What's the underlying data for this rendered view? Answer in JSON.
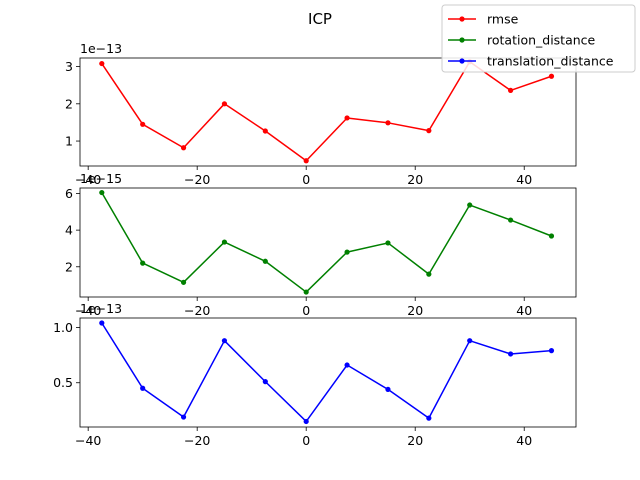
{
  "figure": {
    "title": "ICP"
  },
  "chart_data": [
    {
      "type": "line",
      "series": [
        {
          "name": "rmse",
          "color": "#ff0000",
          "x": [
            -37.5,
            -30,
            -22.5,
            -15,
            -7.5,
            0,
            7.5,
            15,
            22.5,
            30,
            37.5,
            45
          ],
          "y": [
            3.08,
            1.45,
            0.82,
            2.0,
            1.27,
            0.47,
            1.62,
            1.49,
            1.28,
            3.13,
            2.36,
            2.74
          ]
        }
      ],
      "exponent_label": "1e−13",
      "xlim": [
        -41.5,
        49.5
      ],
      "ylim": [
        0.33,
        3.23
      ],
      "xticks": [
        -40,
        -20,
        0,
        20,
        40
      ],
      "xtick_labels": [
        "−40",
        "−20",
        "0",
        "20",
        "40"
      ],
      "yticks": [
        1,
        2,
        3
      ],
      "ytick_labels": [
        "1",
        "2",
        "3"
      ]
    },
    {
      "type": "line",
      "series": [
        {
          "name": "rotation_distance",
          "color": "#008000",
          "x": [
            -37.5,
            -30,
            -22.5,
            -15,
            -7.5,
            0,
            7.5,
            15,
            22.5,
            30,
            37.5,
            45
          ],
          "y": [
            6.05,
            2.2,
            1.15,
            3.35,
            2.3,
            0.62,
            2.8,
            3.3,
            1.6,
            5.37,
            4.55,
            3.68
          ]
        }
      ],
      "exponent_label": "1e−15",
      "xlim": [
        -41.5,
        49.5
      ],
      "ylim": [
        0.35,
        6.3
      ],
      "xticks": [
        -40,
        -20,
        0,
        20,
        40
      ],
      "xtick_labels": [
        "−40",
        "−20",
        "0",
        "20",
        "40"
      ],
      "yticks": [
        2,
        4,
        6
      ],
      "ytick_labels": [
        "2",
        "4",
        "6"
      ]
    },
    {
      "type": "line",
      "series": [
        {
          "name": "translation_distance",
          "color": "#0000ff",
          "x": [
            -37.5,
            -30,
            -22.5,
            -15,
            -7.5,
            0,
            7.5,
            15,
            22.5,
            30,
            37.5,
            45
          ],
          "y": [
            1.04,
            0.45,
            0.19,
            0.88,
            0.51,
            0.15,
            0.66,
            0.44,
            0.18,
            0.88,
            0.76,
            0.79
          ]
        }
      ],
      "exponent_label": "1e−13",
      "xlim": [
        -41.5,
        49.5
      ],
      "ylim": [
        0.1,
        1.085
      ],
      "xticks": [
        -40,
        -20,
        0,
        20,
        40
      ],
      "xtick_labels": [
        "−40",
        "−20",
        "0",
        "20",
        "40"
      ],
      "yticks": [
        0.5,
        1.0
      ],
      "ytick_labels": [
        "0.5",
        "1.0"
      ]
    }
  ],
  "legend": {
    "placement": "upper-right",
    "entries": [
      {
        "label": "rmse",
        "color": "#ff0000"
      },
      {
        "label": "rotation_distance",
        "color": "#008000"
      },
      {
        "label": "translation_distance",
        "color": "#0000ff"
      }
    ]
  }
}
